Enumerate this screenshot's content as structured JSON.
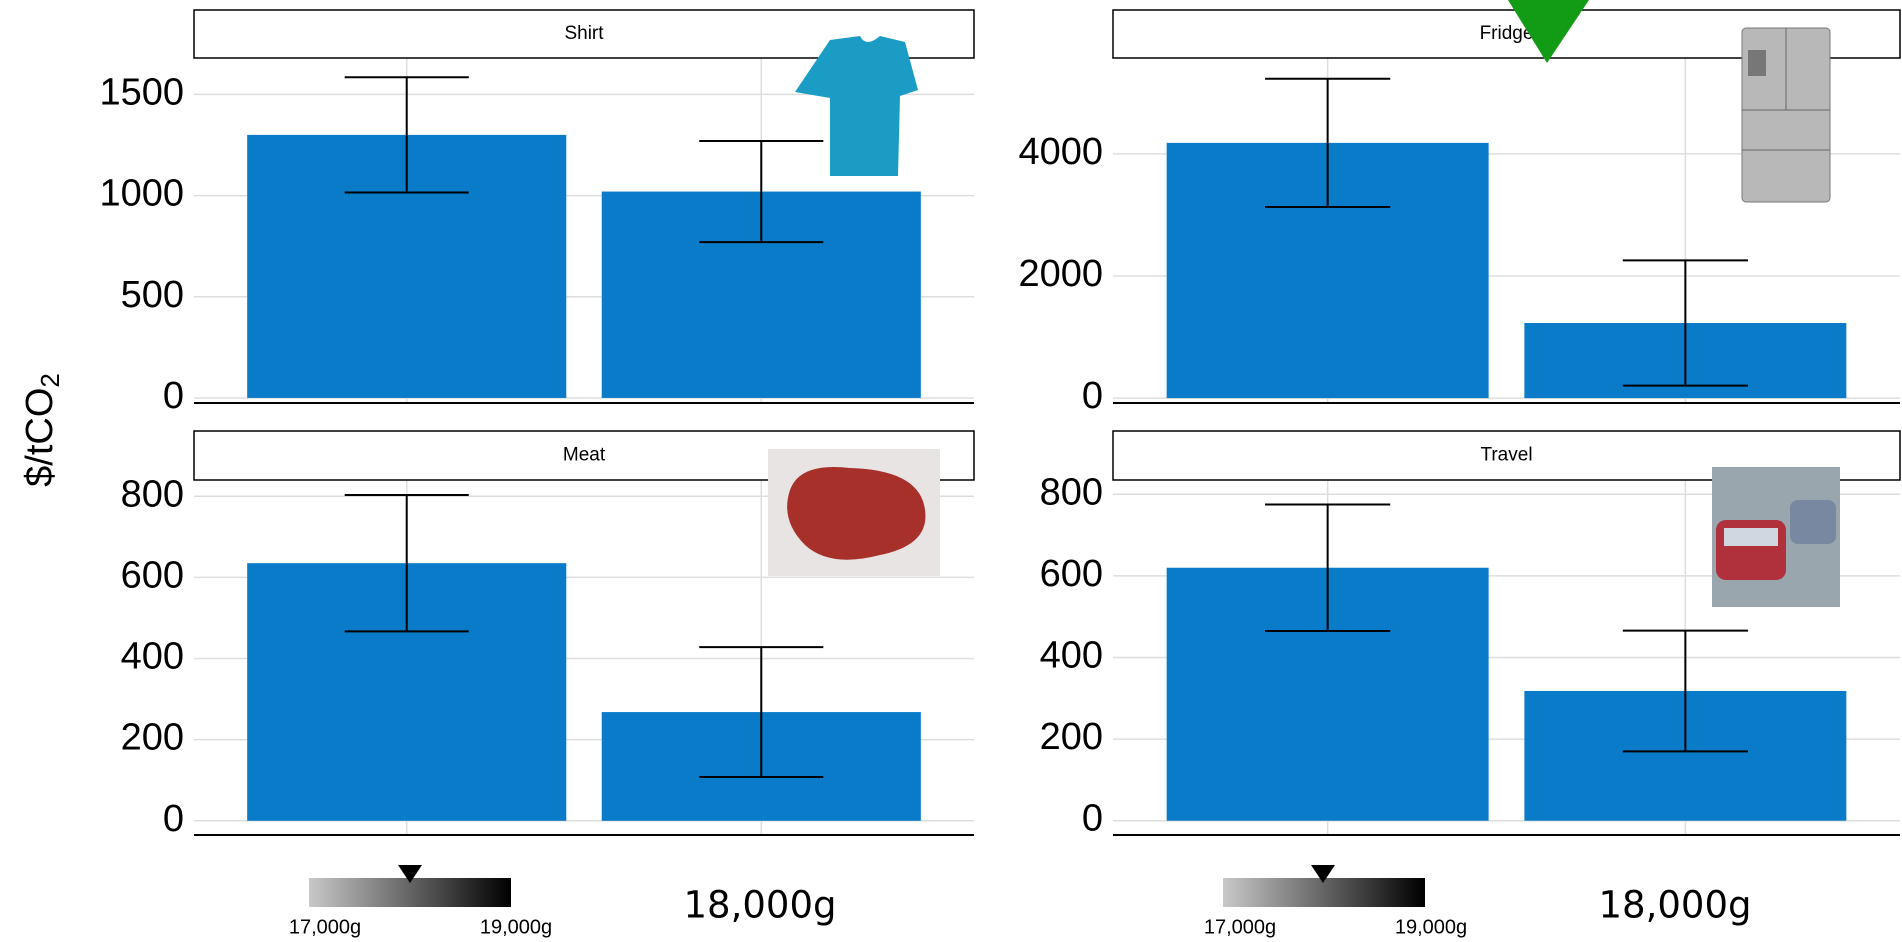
{
  "chart_data": [
    {
      "type": "bar",
      "title": "Shirt",
      "categories": [
        null,
        null
      ],
      "values": [
        1300,
        1020
      ],
      "errors": [
        285,
        250
      ],
      "color": "#0a7bc8",
      "ylim": [
        -25,
        1680
      ],
      "yticks": [
        0,
        500,
        1000,
        1500
      ],
      "grid": true
    },
    {
      "type": "bar",
      "title": "Fridge",
      "categories": [
        null,
        null
      ],
      "values": [
        4180,
        1230
      ],
      "errors": [
        1050,
        1025
      ],
      "color": "#0a7bc8",
      "ylim": [
        -80,
        5570
      ],
      "yticks": [
        0,
        2000,
        4000
      ],
      "grid": true
    },
    {
      "type": "bar",
      "title": "Meat",
      "categories": [
        null,
        null
      ],
      "values": [
        635,
        268
      ],
      "errors": [
        168,
        160
      ],
      "color": "#0a7bc8",
      "ylim": [
        -35,
        840
      ],
      "yticks": [
        0,
        200,
        400,
        600,
        800
      ],
      "grid": true
    },
    {
      "type": "bar",
      "title": "Travel",
      "categories": [
        null,
        null
      ],
      "values": [
        620,
        318
      ],
      "errors": [
        155,
        148
      ],
      "color": "#0a7bc8",
      "ylim": [
        -35,
        835
      ],
      "yticks": [
        0,
        200,
        400,
        600,
        800
      ],
      "grid": true
    }
  ],
  "axis_label": {
    "text": "$/tCO",
    "subscript": "2"
  },
  "scales": [
    {
      "min_label": "17,000g",
      "max_label": "19,000g",
      "value_label": "18,000g"
    },
    {
      "min_label": "17,000g",
      "max_label": "19,000g",
      "value_label": "18,000g"
    }
  ]
}
